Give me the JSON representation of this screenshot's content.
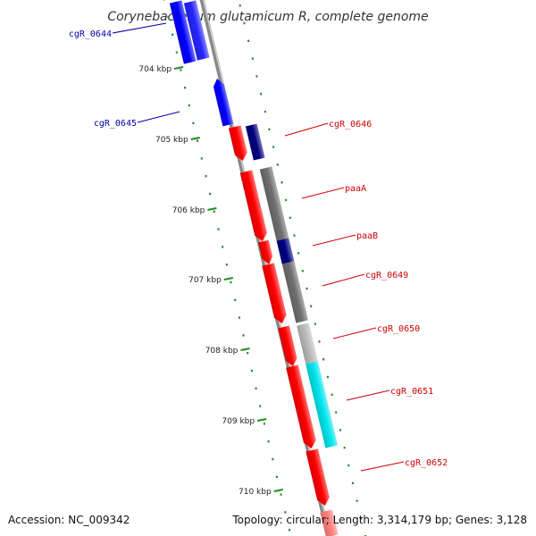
{
  "title": "Corynebacterium glutamicum R, complete genome",
  "footer": {
    "accession": "Accession: NC_009342",
    "stats": "Topology: circular; Length: 3,314,179 bp; Genes: 3,128"
  },
  "colors": {
    "backbone": "#888888",
    "tick": "#228b22",
    "forward_gene": "#0000ff",
    "reverse_gene": "#ff0000",
    "forward_label": "#0000aa",
    "reverse_label": "#cc0000",
    "feature_dark_gray": "#707070",
    "feature_navy": "#000080",
    "feature_light_gray": "#bbbbbb",
    "feature_cyan": "#00e5ee"
  },
  "kbp_labels": [
    "704 kbp",
    "705 kbp",
    "706 kbp",
    "707 kbp",
    "708 kbp",
    "709 kbp",
    "710 kbp"
  ],
  "genes": [
    {
      "label": "cgR_0644",
      "strand": "forward"
    },
    {
      "label": "cgR_0645",
      "strand": "forward"
    },
    {
      "label": "cgR_0646",
      "strand": "reverse"
    },
    {
      "label": "paaA",
      "strand": "reverse"
    },
    {
      "label": "paaB",
      "strand": "reverse"
    },
    {
      "label": "cgR_0649",
      "strand": "reverse"
    },
    {
      "label": "cgR_0650",
      "strand": "reverse"
    },
    {
      "label": "cgR_0651",
      "strand": "reverse"
    },
    {
      "label": "cgR_0652",
      "strand": "reverse"
    }
  ]
}
